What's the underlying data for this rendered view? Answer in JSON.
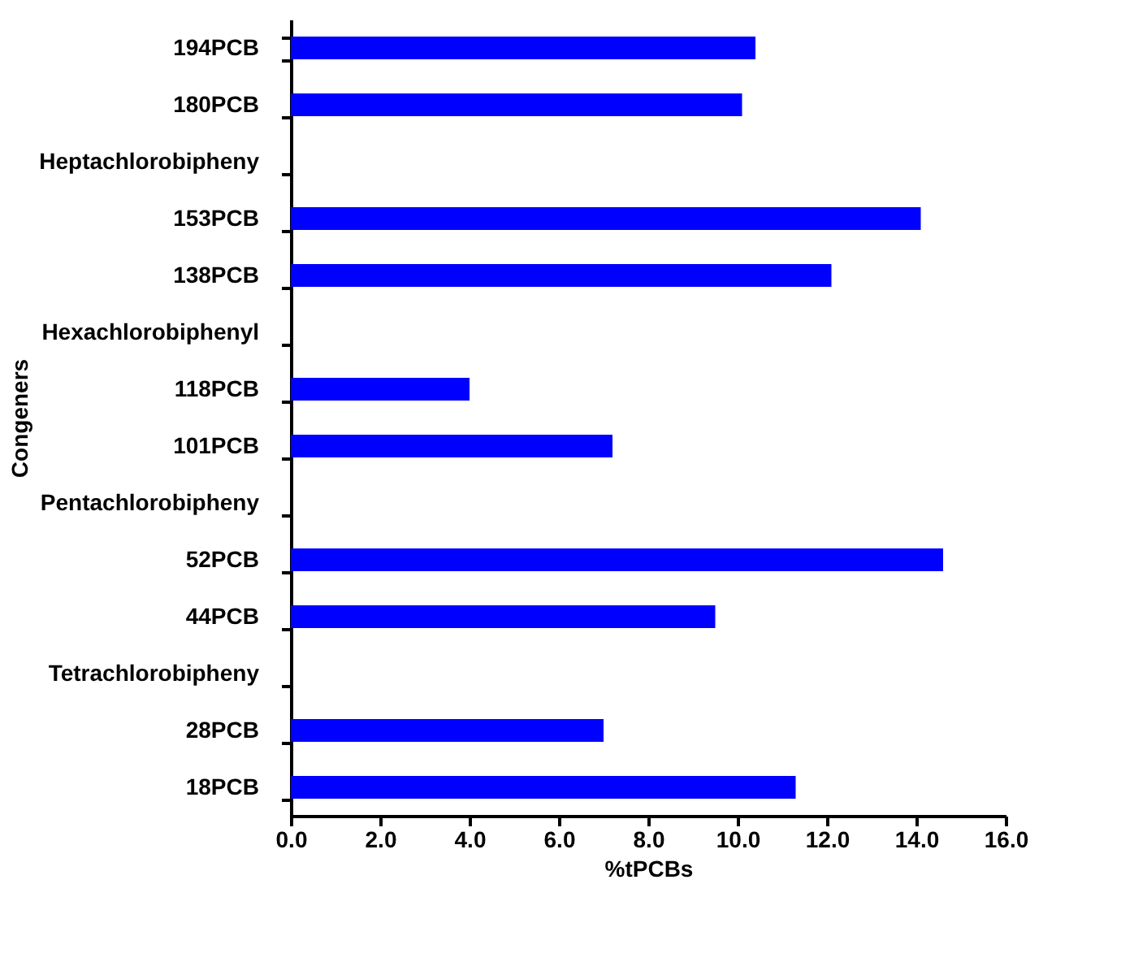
{
  "chart_data": {
    "type": "bar",
    "orientation": "horizontal",
    "xlabel": "%tPCBs",
    "ylabel": "Congeners",
    "categories": [
      "194PCB",
      "180PCB",
      "Heptachlorobipheny",
      "153PCB",
      "138PCB",
      "Hexachlorobiphenyl",
      "118PCB",
      "101PCB",
      "Pentachlorobipheny",
      "52PCB",
      "44PCB",
      "Tetrachlorobipheny",
      "28PCB",
      "18PCB"
    ],
    "values": [
      10.4,
      10.1,
      null,
      14.1,
      12.1,
      null,
      4.0,
      7.2,
      null,
      14.6,
      9.5,
      null,
      7.0,
      11.3
    ],
    "color": "#0000ff",
    "xlim": [
      0,
      16
    ],
    "xticks": [
      {
        "value": 0,
        "label": "0.0"
      },
      {
        "value": 2,
        "label": "2.0"
      },
      {
        "value": 4,
        "label": "4.0"
      },
      {
        "value": 6,
        "label": "6.0"
      },
      {
        "value": 8,
        "label": "8.0"
      },
      {
        "value": 10,
        "label": "10.0"
      },
      {
        "value": 12,
        "label": "12.0"
      },
      {
        "value": 14,
        "label": "14.0"
      },
      {
        "value": 16,
        "label": "16.0"
      }
    ],
    "grid": false
  }
}
